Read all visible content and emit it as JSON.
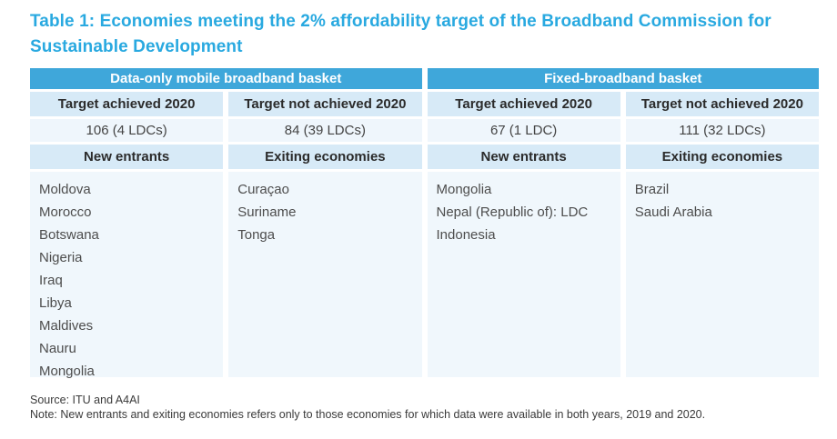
{
  "title": "Table 1: Economies meeting the 2% affordability target of the Broadband Commission for Sustainable Development",
  "colors": {
    "title_accent": "#29a9e0",
    "group_header_bg": "#3fa7da",
    "header_row_bg": "#d7eaf7",
    "body_row_bg": "#f0f7fc"
  },
  "table": {
    "groups": [
      {
        "label": "Data-only mobile broadband basket"
      },
      {
        "label": "Fixed-broadband basket"
      }
    ],
    "columns": [
      {
        "header": "Target achieved 2020",
        "value": "106 (4 LDCs)",
        "subheader": "New entrants",
        "items": [
          "Moldova",
          "Morocco",
          "Botswana",
          "Nigeria",
          "Iraq",
          "Libya",
          "Maldives",
          "Nauru",
          "Mongolia"
        ]
      },
      {
        "header": "Target not achieved 2020",
        "value": "84 (39 LDCs)",
        "subheader": "Exiting economies",
        "items": [
          "Curaçao",
          "Suriname",
          "Tonga"
        ]
      },
      {
        "header": "Target achieved 2020",
        "value": "67 (1 LDC)",
        "subheader": "New entrants",
        "items": [
          "Mongolia",
          "Nepal (Republic of): LDC",
          "Indonesia"
        ]
      },
      {
        "header": "Target not achieved 2020",
        "value": "111 (32 LDCs)",
        "subheader": "Exiting economies",
        "items": [
          "Brazil",
          "Saudi Arabia"
        ]
      }
    ]
  },
  "source": "Source: ITU and A4AI",
  "note": "Note: New entrants and exiting economies refers only to those economies for which data were available in both years, 2019 and 2020."
}
